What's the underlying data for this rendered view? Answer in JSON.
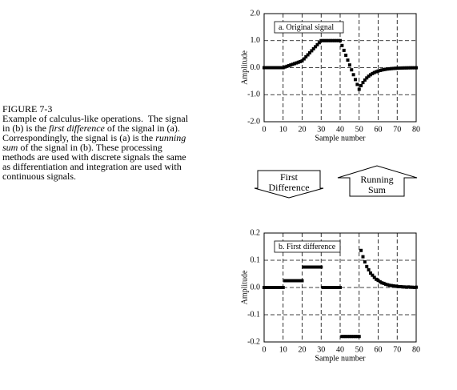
{
  "chart_data": [
    {
      "type": "scatter",
      "label": "a. Original signal",
      "xlabel": "Sample number",
      "ylabel": "Amplitude",
      "color": "#000000",
      "grid": true,
      "xlim": [
        0,
        80
      ],
      "ylim": [
        -2,
        2
      ],
      "xticks": [
        0,
        10,
        20,
        30,
        40,
        50,
        60,
        70,
        80
      ],
      "yticks": [
        {
          "value": -2,
          "label": "-2.0"
        },
        {
          "value": -1,
          "label": "-1.0"
        },
        {
          "value": 0,
          "label": "0.0"
        },
        {
          "value": 1,
          "label": "1.0"
        },
        {
          "value": 2,
          "label": "2.0"
        }
      ],
      "x": [
        0,
        1,
        2,
        3,
        4,
        5,
        6,
        7,
        8,
        9,
        10,
        11,
        12,
        13,
        14,
        15,
        16,
        17,
        18,
        19,
        20,
        21,
        22,
        23,
        24,
        25,
        26,
        27,
        28,
        29,
        30,
        31,
        32,
        33,
        34,
        35,
        36,
        37,
        38,
        39,
        40,
        41,
        42,
        43,
        44,
        45,
        46,
        47,
        48,
        49,
        50,
        51,
        52,
        53,
        54,
        55,
        56,
        57,
        58,
        59,
        60,
        61,
        62,
        63,
        64,
        65,
        66,
        67,
        68,
        69,
        70,
        71,
        72,
        73,
        74,
        75,
        76,
        77,
        78,
        79,
        80
      ],
      "values": [
        0,
        0,
        0,
        0,
        0,
        0,
        0,
        0,
        0,
        0,
        0,
        0.025,
        0.05,
        0.075,
        0.1,
        0.125,
        0.15,
        0.175,
        0.2,
        0.225,
        0.25,
        0.325,
        0.4,
        0.475,
        0.55,
        0.625,
        0.7,
        0.775,
        0.85,
        0.925,
        1.0,
        1.0,
        1.0,
        1.0,
        1.0,
        1.0,
        1.0,
        1.0,
        1.0,
        1.0,
        1.0,
        0.82,
        0.64,
        0.46,
        0.28,
        0.1,
        -0.08,
        -0.26,
        -0.44,
        -0.62,
        -0.8,
        -0.664,
        -0.551,
        -0.457,
        -0.38,
        -0.315,
        -0.262,
        -0.217,
        -0.18,
        -0.15,
        -0.124,
        -0.103,
        -0.086,
        -0.071,
        -0.059,
        -0.049,
        -0.041,
        -0.034,
        -0.028,
        -0.023,
        -0.019,
        -0.016,
        -0.013,
        -0.011,
        -0.009,
        -0.008,
        -0.006,
        -0.005,
        -0.004,
        -0.004,
        -0.003
      ]
    },
    {
      "type": "scatter",
      "label": "b. First difference",
      "xlabel": "Sample number",
      "ylabel": "Amplitude",
      "color": "#000000",
      "grid": true,
      "xlim": [
        0,
        80
      ],
      "ylim": [
        -0.2,
        0.2
      ],
      "xticks": [
        0,
        10,
        20,
        30,
        40,
        50,
        60,
        70,
        80
      ],
      "yticks": [
        -0.2,
        -0.1,
        {
          "value": 0,
          "label": "0.0"
        },
        0.1,
        0.2
      ],
      "x": [
        0,
        1,
        2,
        3,
        4,
        5,
        6,
        7,
        8,
        9,
        10,
        11,
        12,
        13,
        14,
        15,
        16,
        17,
        18,
        19,
        20,
        21,
        22,
        23,
        24,
        25,
        26,
        27,
        28,
        29,
        30,
        31,
        32,
        33,
        34,
        35,
        36,
        37,
        38,
        39,
        40,
        41,
        42,
        43,
        44,
        45,
        46,
        47,
        48,
        49,
        50,
        51,
        52,
        53,
        54,
        55,
        56,
        57,
        58,
        59,
        60,
        61,
        62,
        63,
        64,
        65,
        66,
        67,
        68,
        69,
        70,
        71,
        72,
        73,
        74,
        75,
        76,
        77,
        78,
        79,
        80
      ],
      "values": [
        0,
        0,
        0,
        0,
        0,
        0,
        0,
        0,
        0,
        0,
        0,
        0.025,
        0.025,
        0.025,
        0.025,
        0.025,
        0.025,
        0.025,
        0.025,
        0.025,
        0.025,
        0.075,
        0.075,
        0.075,
        0.075,
        0.075,
        0.075,
        0.075,
        0.075,
        0.075,
        0.075,
        0,
        0,
        0,
        0,
        0,
        0,
        0,
        0,
        0,
        0,
        -0.18,
        -0.18,
        -0.18,
        -0.18,
        -0.18,
        -0.18,
        -0.18,
        -0.18,
        -0.18,
        -0.18,
        0.136,
        0.113,
        0.094,
        0.077,
        0.065,
        0.053,
        0.045,
        0.037,
        0.03,
        0.026,
        0.021,
        0.017,
        0.015,
        0.012,
        0.01,
        0.008,
        0.007,
        0.006,
        0.005,
        0.004,
        0.003,
        0.003,
        0.002,
        0.002,
        0.001,
        0.002,
        0.001,
        0.001,
        0,
        0.001
      ]
    }
  ],
  "caption": {
    "label": "FIGURE 7-3",
    "runs": [
      {
        "text": "Example of calculus-like operations.  The signal in (b) is the ",
        "italic": false
      },
      {
        "text": "first difference",
        "italic": true
      },
      {
        "text": " of the signal in (a).  Correspondingly, the signal is (a) is the ",
        "italic": false
      },
      {
        "text": "running sum",
        "italic": true
      },
      {
        "text": " of the signal in (b). These processing methods are used with discrete signals the same as differentiation and integration are used with continuous signals.",
        "italic": false
      }
    ]
  },
  "arrows": [
    "First Difference",
    "Running Sum"
  ]
}
